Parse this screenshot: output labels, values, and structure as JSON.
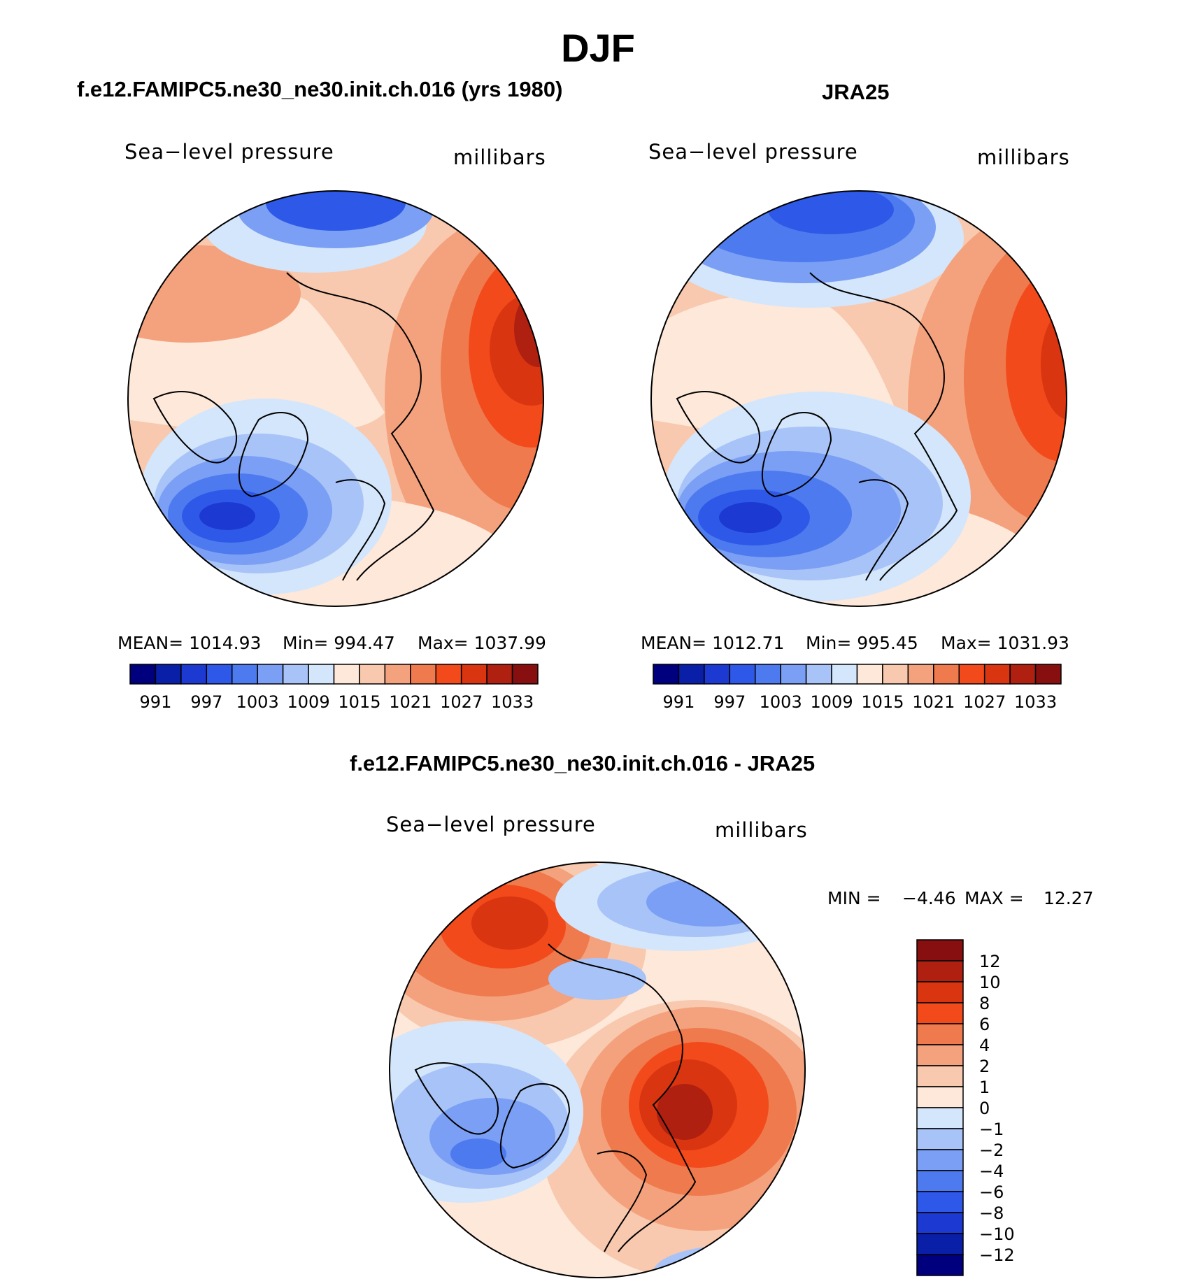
{
  "title": "DJF",
  "colors": {
    "abs_scale": [
      "#00007f",
      "#0a1fa8",
      "#1c3ad1",
      "#2e59e8",
      "#4d7bef",
      "#7a9ff4",
      "#a8c3f7",
      "#d4e6fb",
      "#fde8da",
      "#f8c9ae",
      "#f4a27d",
      "#ef7a4e",
      "#f34a1b",
      "#d93510",
      "#b02010",
      "#870f0f"
    ],
    "diff_scale": [
      "#00007f",
      "#0a1fa8",
      "#1c3ad1",
      "#2e59e8",
      "#4d7bef",
      "#7a9ff4",
      "#a8c3f7",
      "#d4e6fb",
      "#fde8da",
      "#f8c9ae",
      "#f4a27d",
      "#ef7a4e",
      "#f34a1b",
      "#d93510",
      "#b02010",
      "#870f0f"
    ]
  },
  "panels": [
    {
      "title": "f.e12.FAMIPC5.ne30_ne30.init.ch.016 (yrs 1980)",
      "left_label": "Sea−level pressure",
      "right_label": "millibars",
      "mean": "MEAN=  1014.93",
      "min": "Min=  994.47",
      "max": "Max=  1037.99",
      "colorbar_labels": [
        "991",
        "997",
        "1003",
        "1009",
        "1015",
        "1021",
        "1027",
        "1033"
      ]
    },
    {
      "title": "JRA25",
      "left_label": "Sea−level pressure",
      "right_label": "millibars",
      "mean": "MEAN=  1012.71",
      "min": "Min=  995.45",
      "max": "Max=  1031.93",
      "colorbar_labels": [
        "991",
        "997",
        "1003",
        "1009",
        "1015",
        "1021",
        "1027",
        "1033"
      ]
    }
  ],
  "diff_panel": {
    "title": "f.e12.FAMIPC5.ne30_ne30.init.ch.016 - JRA25",
    "left_label": "Sea−level pressure",
    "right_label": "millibars",
    "min_label": "MIN =",
    "min_value": "−4.46",
    "max_label": "MAX =",
    "max_value": "12.27",
    "colorbar_labels": [
      "12",
      "10",
      "8",
      "6",
      "4",
      "2",
      "1",
      "0",
      "−1",
      "−2",
      "−4",
      "−6",
      "−8",
      "−10",
      "−12"
    ]
  }
}
